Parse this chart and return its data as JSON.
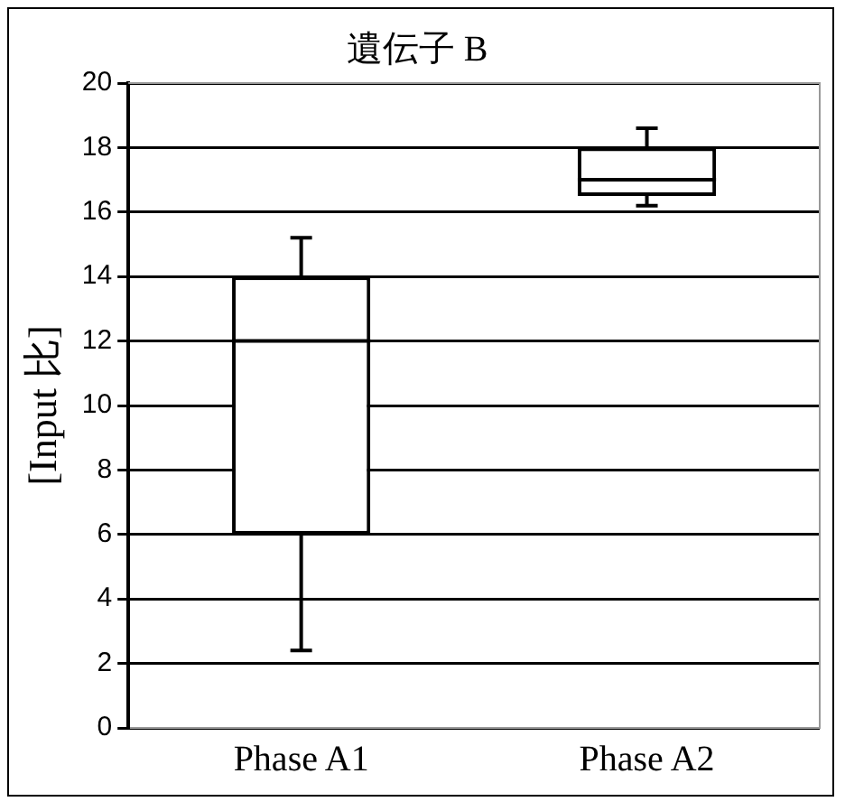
{
  "chart_data": {
    "type": "box",
    "title": "遺伝子 B",
    "ylabel": "[Input 比]",
    "categories": [
      "Phase A1",
      "Phase A2"
    ],
    "boxes": [
      {
        "low": 2.4,
        "q1": 6,
        "median": 12,
        "q3": 14,
        "high": 15.2
      },
      {
        "low": 16.2,
        "q1": 16.5,
        "median": 17,
        "q3": 18,
        "high": 18.6
      }
    ],
    "ylim": [
      0,
      20
    ],
    "yticks": [
      0,
      2,
      4,
      6,
      8,
      10,
      12,
      14,
      16,
      18,
      20
    ],
    "grid": "y",
    "legend": false
  }
}
